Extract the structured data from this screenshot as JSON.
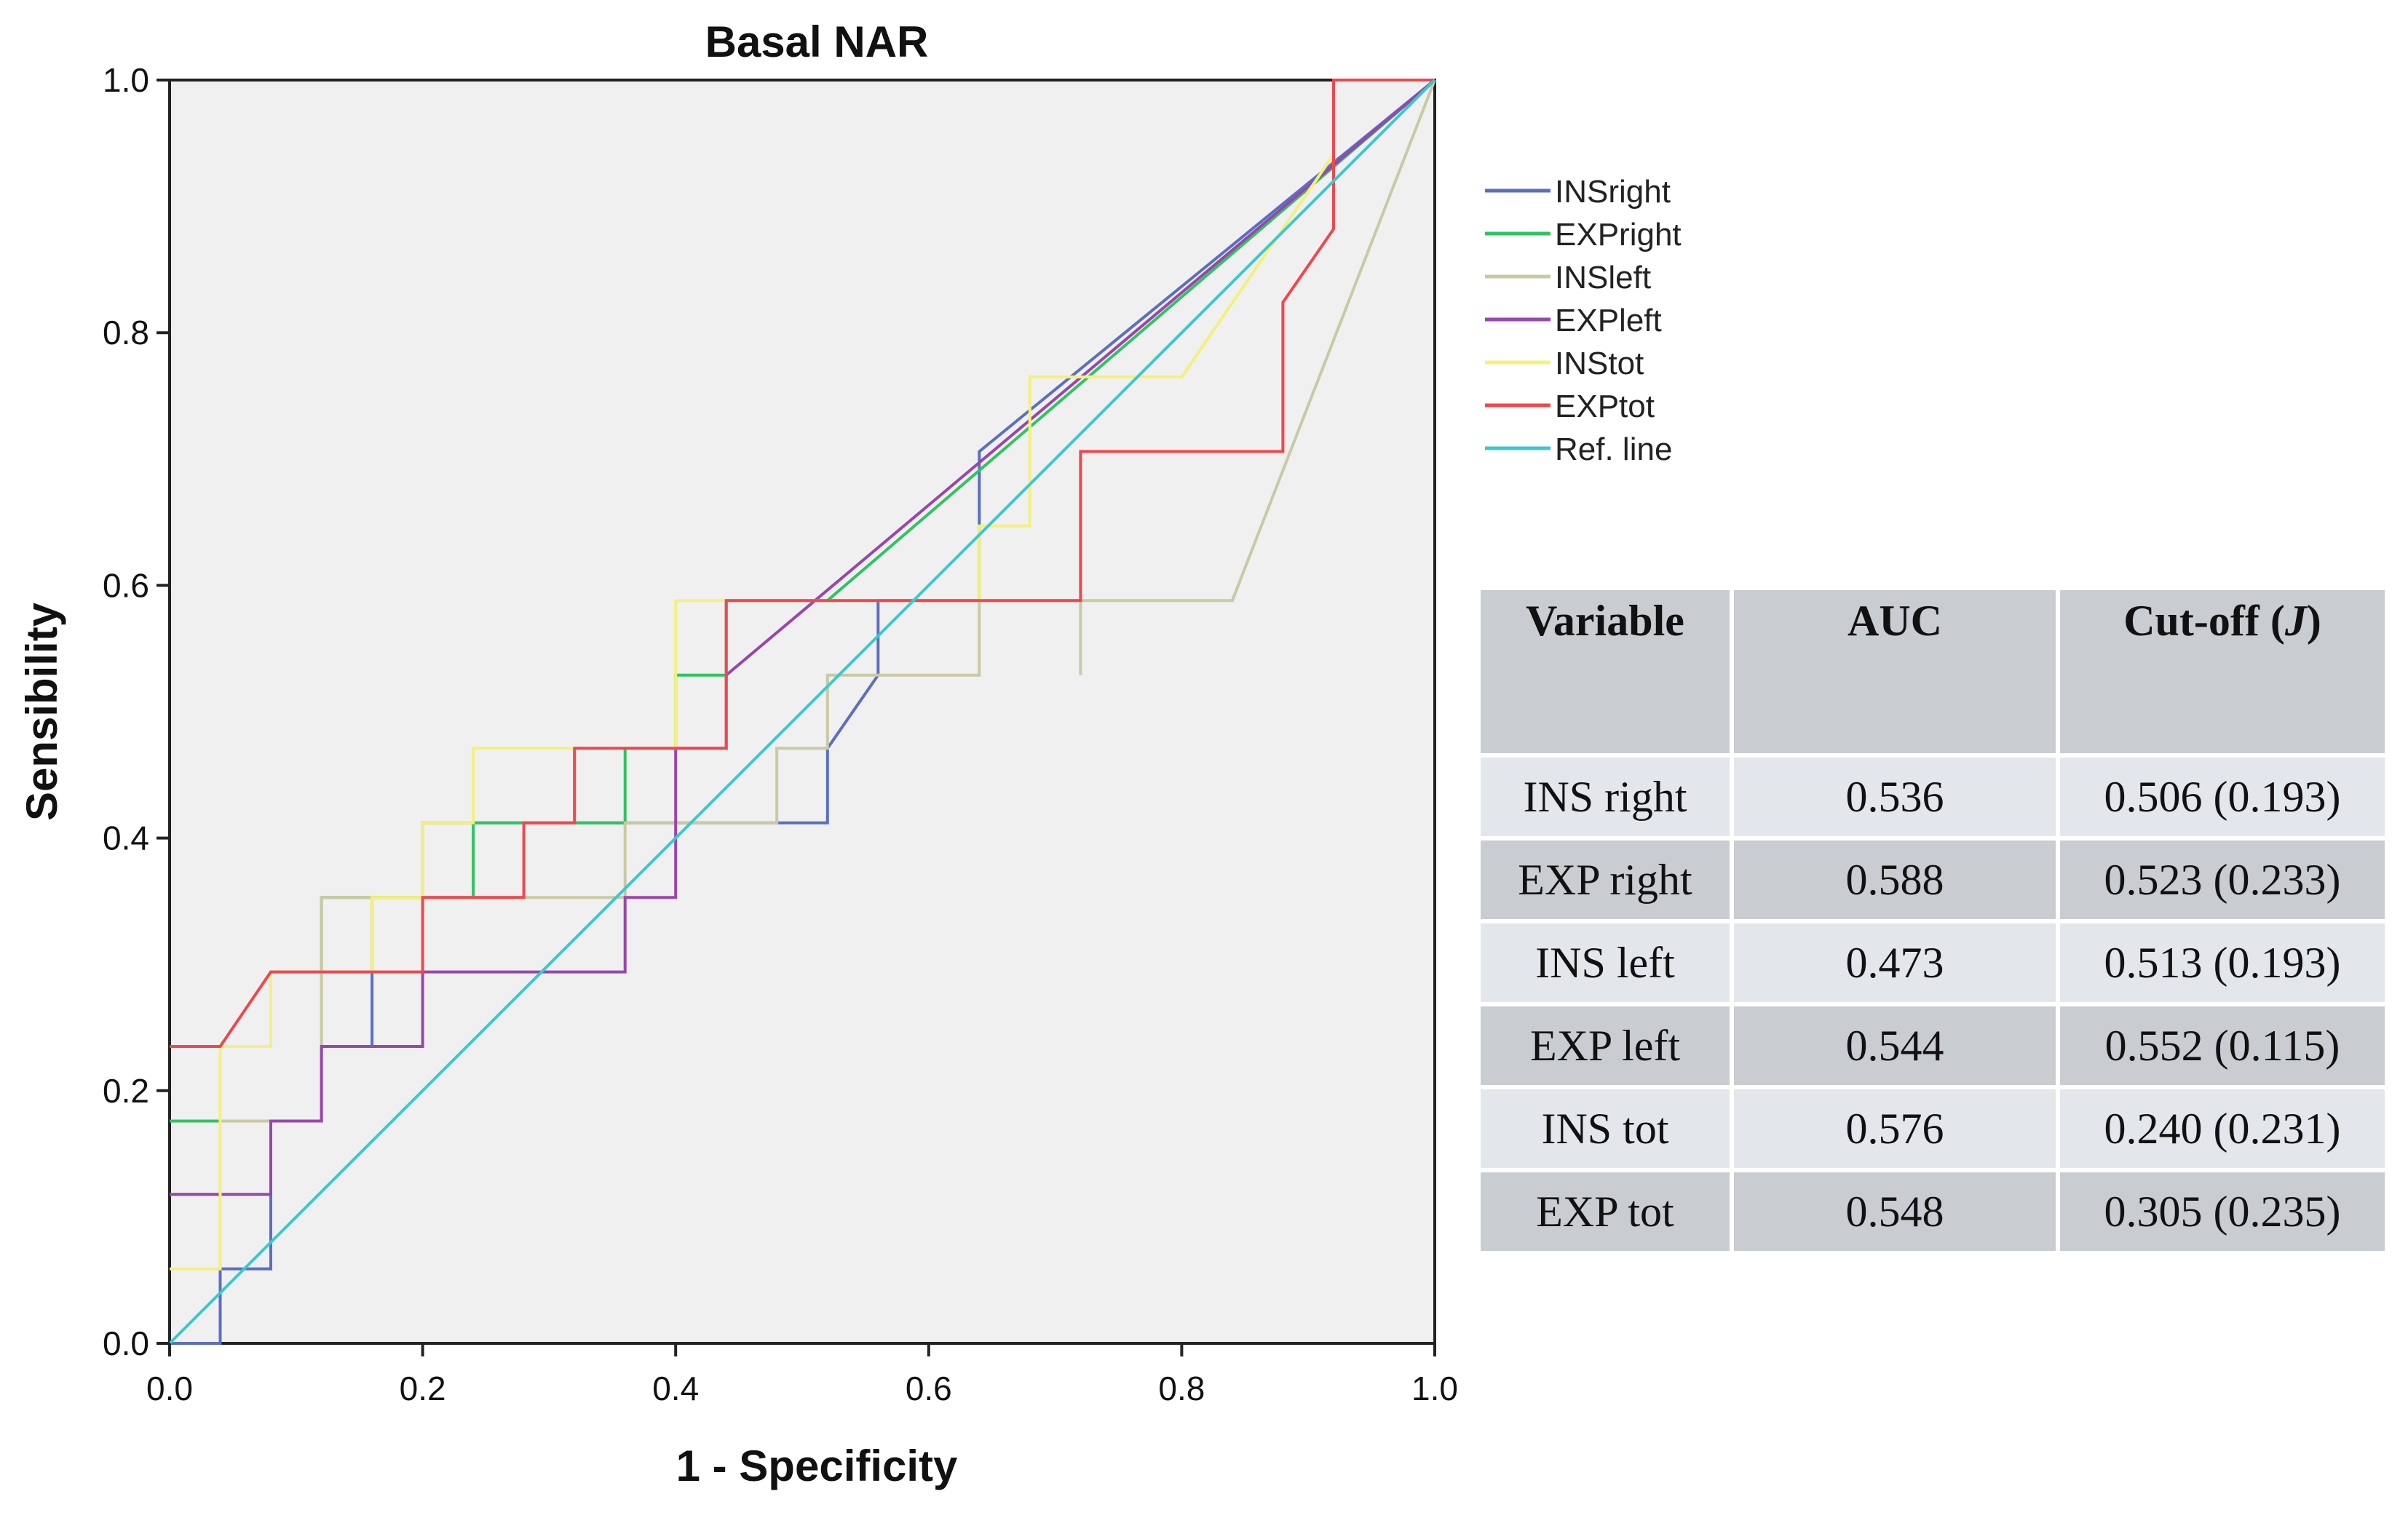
{
  "chart_data": {
    "type": "line",
    "title": "Basal NAR",
    "xlabel": "1 - Specificity",
    "ylabel": "Sensibility",
    "xlim": [
      0,
      1
    ],
    "ylim": [
      0,
      1
    ],
    "xticks": [
      "0.0",
      "0.2",
      "0.4",
      "0.6",
      "0.8",
      "1.0"
    ],
    "yticks": [
      "0.0",
      "0.2",
      "0.4",
      "0.6",
      "0.8",
      "1.0"
    ],
    "legend_position": "right",
    "series": [
      {
        "name": "INSright",
        "color": "#5b6fc0",
        "points": [
          [
            0,
            0
          ],
          [
            0.04,
            0
          ],
          [
            0.04,
            0.059
          ],
          [
            0.08,
            0.059
          ],
          [
            0.08,
            0.176
          ],
          [
            0.12,
            0.176
          ],
          [
            0.12,
            0.235
          ],
          [
            0.16,
            0.235
          ],
          [
            0.16,
            0.353
          ],
          [
            0.2,
            0.353
          ],
          [
            0.2,
            0.412
          ],
          [
            0.48,
            0.412
          ],
          [
            0.52,
            0.412
          ],
          [
            0.52,
            0.471
          ],
          [
            0.56,
            0.529
          ],
          [
            0.56,
            0.588
          ],
          [
            0.64,
            0.588
          ],
          [
            0.64,
            0.706
          ],
          [
            1,
            1
          ]
        ]
      },
      {
        "name": "EXPright",
        "color": "#2ec461",
        "points": [
          [
            0,
            0.176
          ],
          [
            0.04,
            0.176
          ],
          [
            0.04,
            0.235
          ],
          [
            0.08,
            0.235
          ],
          [
            0.08,
            0.294
          ],
          [
            0.12,
            0.294
          ],
          [
            0.12,
            0.353
          ],
          [
            0.24,
            0.353
          ],
          [
            0.24,
            0.412
          ],
          [
            0.36,
            0.412
          ],
          [
            0.36,
            0.471
          ],
          [
            0.4,
            0.471
          ],
          [
            0.4,
            0.529
          ],
          [
            0.44,
            0.529
          ],
          [
            0.44,
            0.588
          ],
          [
            0.52,
            0.588
          ],
          [
            1,
            1
          ]
        ]
      },
      {
        "name": "INSleft",
        "color": "#c9c9a3",
        "points": [
          [
            0,
            0.118
          ],
          [
            0.04,
            0.118
          ],
          [
            0.04,
            0.176
          ],
          [
            0.12,
            0.176
          ],
          [
            0.12,
            0.353
          ],
          [
            0.36,
            0.353
          ],
          [
            0.36,
            0.412
          ],
          [
            0.48,
            0.412
          ],
          [
            0.48,
            0.471
          ],
          [
            0.52,
            0.471
          ],
          [
            0.52,
            0.529
          ],
          [
            0.64,
            0.529
          ],
          [
            0.64,
            0.588
          ],
          [
            0.68,
            0.588
          ],
          [
            0.72,
            0.588
          ],
          [
            0.72,
            0.529
          ],
          [
            0.72,
            0.588
          ],
          [
            0.84,
            0.588
          ],
          [
            1,
            1
          ]
        ]
      },
      {
        "name": "EXPleft",
        "color": "#9a45ad",
        "points": [
          [
            0,
            0.118
          ],
          [
            0.08,
            0.118
          ],
          [
            0.08,
            0.176
          ],
          [
            0.12,
            0.176
          ],
          [
            0.12,
            0.235
          ],
          [
            0.2,
            0.235
          ],
          [
            0.2,
            0.294
          ],
          [
            0.36,
            0.294
          ],
          [
            0.36,
            0.353
          ],
          [
            0.4,
            0.353
          ],
          [
            0.4,
            0.471
          ],
          [
            0.44,
            0.471
          ],
          [
            0.44,
            0.529
          ],
          [
            1,
            1
          ]
        ]
      },
      {
        "name": "INStot",
        "color": "#f5f07c",
        "points": [
          [
            0,
            0.059
          ],
          [
            0.04,
            0.059
          ],
          [
            0.04,
            0.235
          ],
          [
            0.08,
            0.235
          ],
          [
            0.08,
            0.294
          ],
          [
            0.16,
            0.294
          ],
          [
            0.16,
            0.353
          ],
          [
            0.2,
            0.353
          ],
          [
            0.2,
            0.412
          ],
          [
            0.24,
            0.412
          ],
          [
            0.24,
            0.471
          ],
          [
            0.4,
            0.471
          ],
          [
            0.4,
            0.588
          ],
          [
            0.64,
            0.588
          ],
          [
            0.64,
            0.647
          ],
          [
            0.68,
            0.647
          ],
          [
            0.68,
            0.765
          ],
          [
            0.8,
            0.765
          ],
          [
            0.92,
            0.941
          ],
          [
            0.92,
            1
          ],
          [
            1,
            1
          ]
        ]
      },
      {
        "name": "EXPtot",
        "color": "#f0474c",
        "points": [
          [
            0,
            0.235
          ],
          [
            0.04,
            0.235
          ],
          [
            0.08,
            0.294
          ],
          [
            0.2,
            0.294
          ],
          [
            0.2,
            0.353
          ],
          [
            0.28,
            0.353
          ],
          [
            0.28,
            0.412
          ],
          [
            0.32,
            0.412
          ],
          [
            0.32,
            0.471
          ],
          [
            0.44,
            0.471
          ],
          [
            0.44,
            0.588
          ],
          [
            0.72,
            0.588
          ],
          [
            0.72,
            0.706
          ],
          [
            0.88,
            0.706
          ],
          [
            0.88,
            0.824
          ],
          [
            0.92,
            0.882
          ],
          [
            0.92,
            1
          ],
          [
            1,
            1
          ]
        ]
      },
      {
        "name": "Ref. line",
        "color": "#3cc8cf",
        "points": [
          [
            0,
            0
          ],
          [
            1,
            1
          ]
        ]
      }
    ]
  },
  "table": {
    "headers": {
      "variable": "Variable",
      "auc": "AUC",
      "cutoff": "Cut-off (",
      "cutoff_j": "J",
      "cutoff_close": ")"
    },
    "rows": [
      {
        "variable": "INS right",
        "auc": "0.536",
        "cutoff": "0.506 (0.193)"
      },
      {
        "variable": "EXP right",
        "auc": "0.588",
        "cutoff": "0.523 (0.233)"
      },
      {
        "variable": "INS left",
        "auc": "0.473",
        "cutoff": "0.513 (0.193)"
      },
      {
        "variable": "EXP left",
        "auc": "0.544",
        "cutoff": "0.552 (0.115)"
      },
      {
        "variable": "INS tot",
        "auc": "0.576",
        "cutoff": "0.240 (0.231)"
      },
      {
        "variable": "EXP tot",
        "auc": "0.548",
        "cutoff": "0.305 (0.235)"
      }
    ]
  }
}
